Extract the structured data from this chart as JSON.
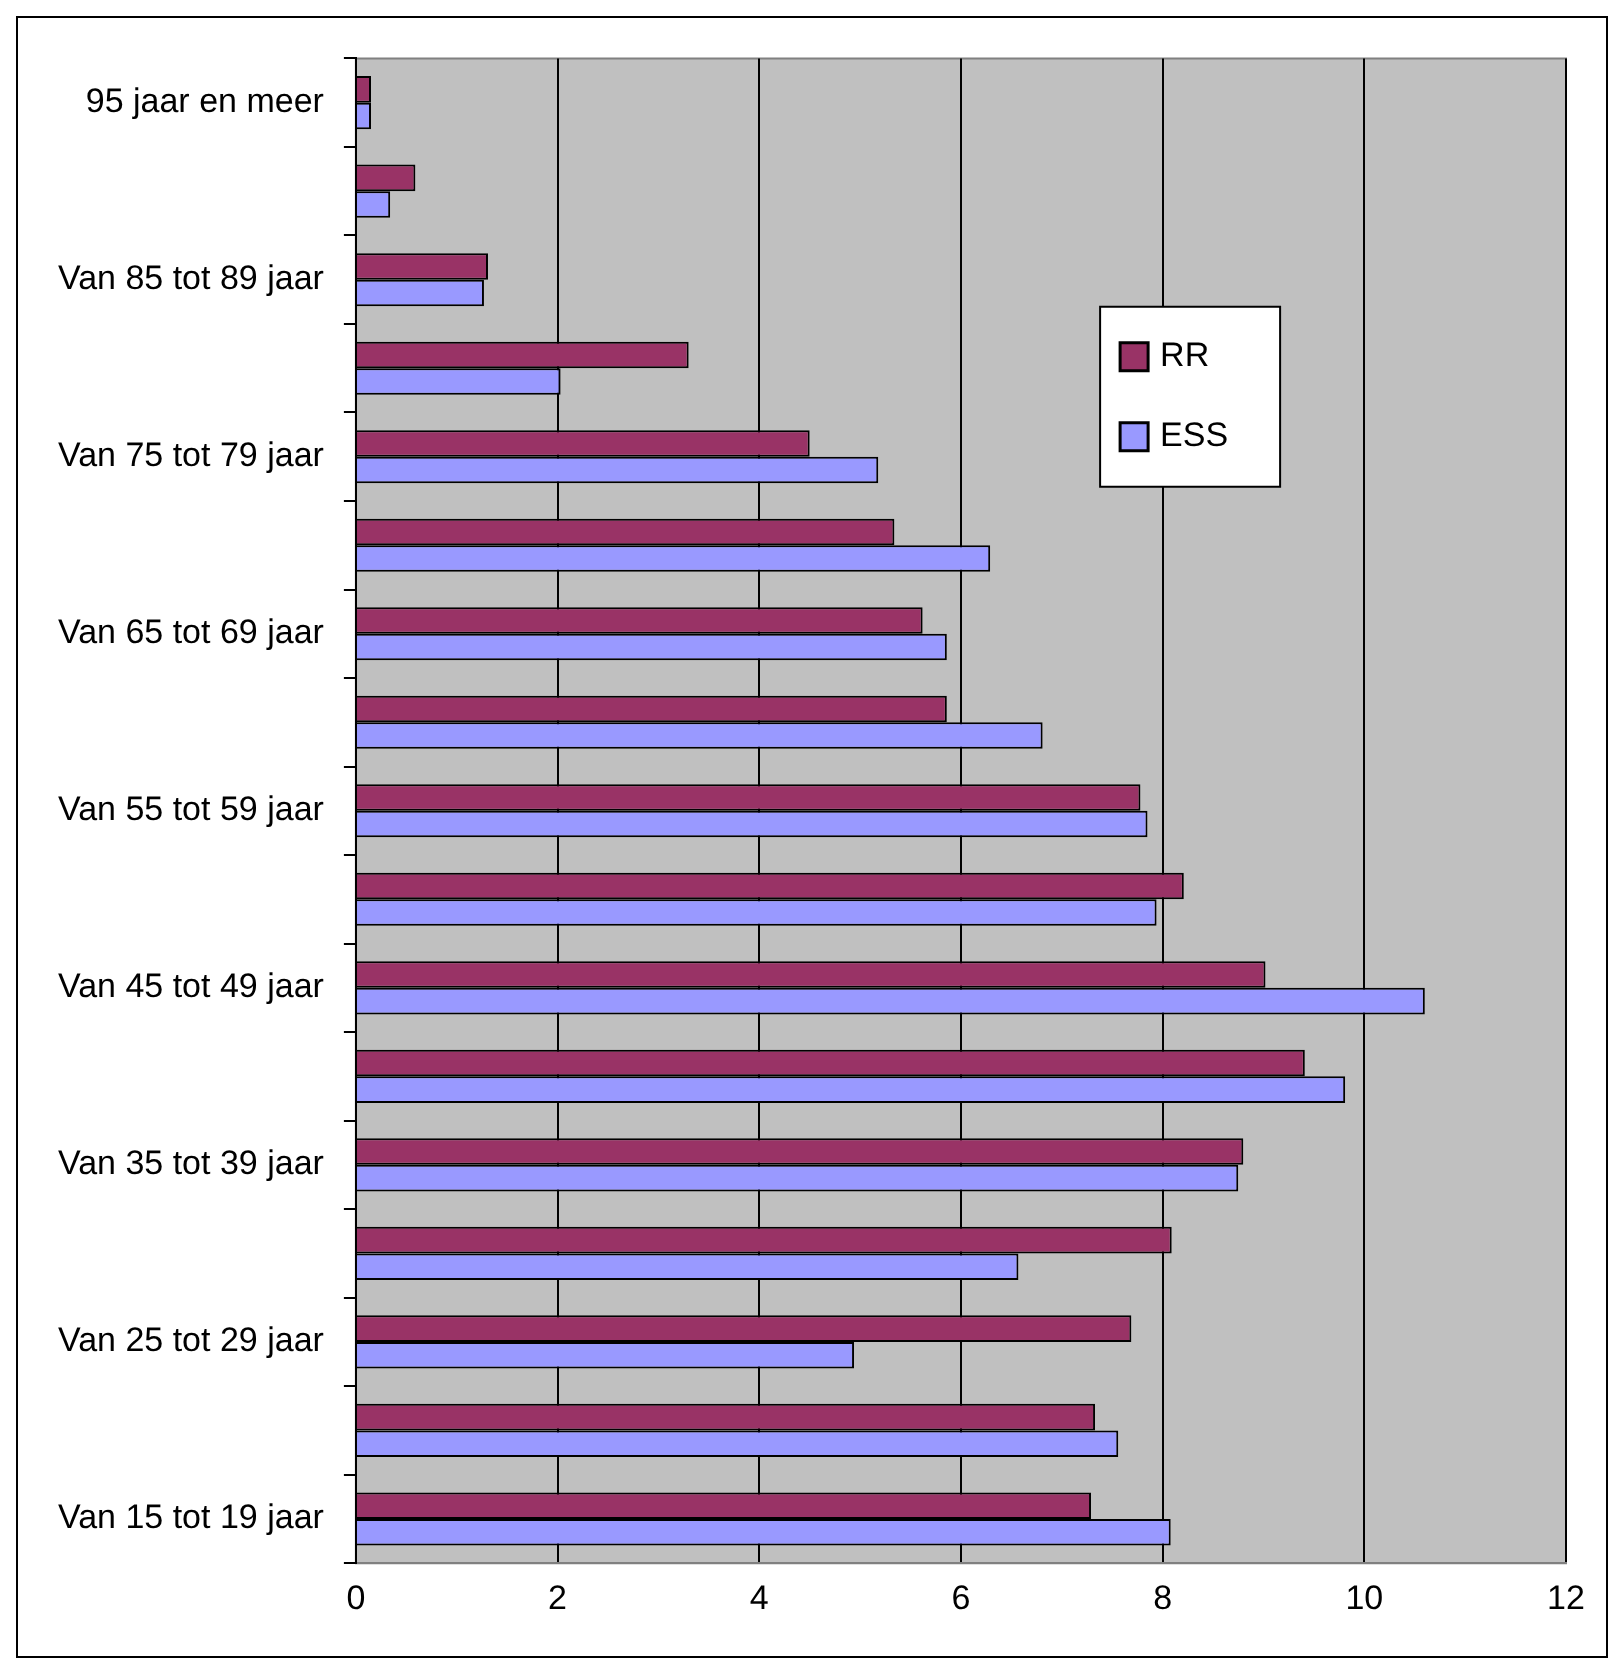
{
  "chart_data": {
    "type": "bar",
    "orientation": "horizontal",
    "categories": [
      "95 jaar en meer",
      null,
      "Van 85 tot 89 jaar",
      null,
      "Van 75 tot 79 jaar",
      null,
      "Van 65 tot 69 jaar",
      null,
      "Van 55 tot 59 jaar",
      null,
      "Van 45 tot 49 jaar",
      null,
      "Van 35 tot 39 jaar",
      null,
      "Van 25 tot 29 jaar",
      null,
      "Van 15 tot 19 jaar"
    ],
    "series": [
      {
        "name": "RR",
        "color": "#993366",
        "values": [
          0.15,
          0.59,
          1.31,
          3.3,
          4.5,
          5.34,
          5.62,
          5.86,
          7.78,
          8.21,
          9.02,
          9.41,
          8.8,
          8.09,
          7.69,
          7.33,
          7.29
        ]
      },
      {
        "name": "ESS",
        "color": "#9999ff",
        "values": [
          0.15,
          0.34,
          1.27,
          2.03,
          5.18,
          6.29,
          5.86,
          6.81,
          7.85,
          7.94,
          10.6,
          9.81,
          8.75,
          6.57,
          4.94,
          7.56,
          8.08
        ]
      }
    ],
    "xlim": [
      0,
      12
    ],
    "xticks": [
      0,
      2,
      4,
      6,
      8,
      10,
      12
    ],
    "grid": "x",
    "legend": "top right"
  }
}
